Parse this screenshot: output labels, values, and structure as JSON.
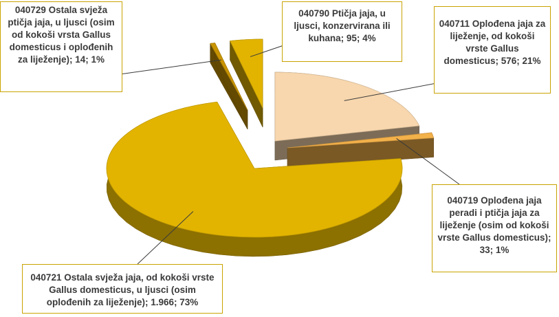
{
  "chart_data": {
    "type": "pie",
    "title": "",
    "slices": [
      {
        "code": "040711",
        "label": "040711 Oplođena jaja za liježenje, od kokoši vrste Gallus domesticus; 576; 21%",
        "value": 576,
        "percent": 21,
        "color": "#f8d7ae"
      },
      {
        "code": "040719",
        "label": "040719 Oplođena jaja peradi i ptičja jaja za liježenje (osim od kokoši vrste Gallus domesticus); 33; 1%",
        "value": 33,
        "percent": 1,
        "color": "#f3b14a"
      },
      {
        "code": "040721",
        "label": "040721 Ostala svježa jaja, od kokoši vrste Gallus domesticus, u ljusci (osim oplođenih za liježenje); 1.966; 73%",
        "value": 1966,
        "percent": 73,
        "color": "#e2b400"
      },
      {
        "code": "040729",
        "label": "040729 Ostala svježa ptičja jaja, u ljusci (osim od kokoši vrsta Gallus domesticus i oplođenih za liježenje); 14; 1%",
        "value": 14,
        "percent": 1,
        "color": "#c89400"
      },
      {
        "code": "040790",
        "label": "040790 Ptičja jaja, u ljusci, konzervirana ili kuhana; 95; 4%",
        "value": 95,
        "percent": 4,
        "color": "#e2b400"
      }
    ],
    "legend": "none"
  }
}
